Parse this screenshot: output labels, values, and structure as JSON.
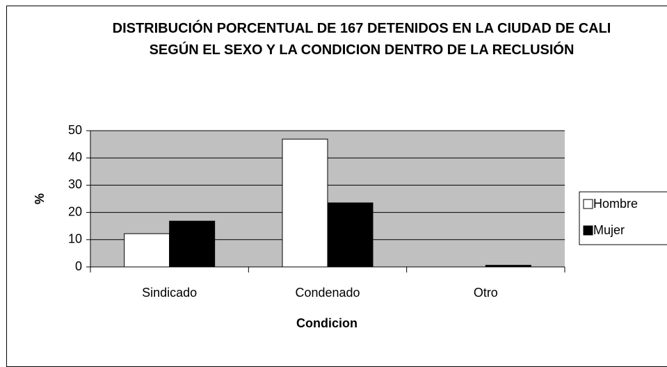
{
  "chart_data": {
    "type": "bar",
    "title": "DISTRIBUCIÓN PORCENTUAL DE 167 DETENIDOS EN LA CIUDAD DE CALI SEGÚN EL SEXO Y LA CONDICION DENTRO DE LA RECLUSIÓN",
    "x_label": "Condicion",
    "y_label": "%",
    "categories": [
      "Sindicado",
      "Condenado",
      "Otro"
    ],
    "series": [
      {
        "name": "Hombre",
        "color": "#ffffff",
        "values": [
          12.2,
          46.9,
          0
        ]
      },
      {
        "name": "Mujer",
        "color": "#000000",
        "values": [
          16.8,
          23.5,
          0.6
        ]
      }
    ],
    "ylim": [
      0,
      50
    ],
    "yticks": [
      0,
      10,
      20,
      30,
      40,
      50
    ],
    "grid": true,
    "legend": "right"
  }
}
